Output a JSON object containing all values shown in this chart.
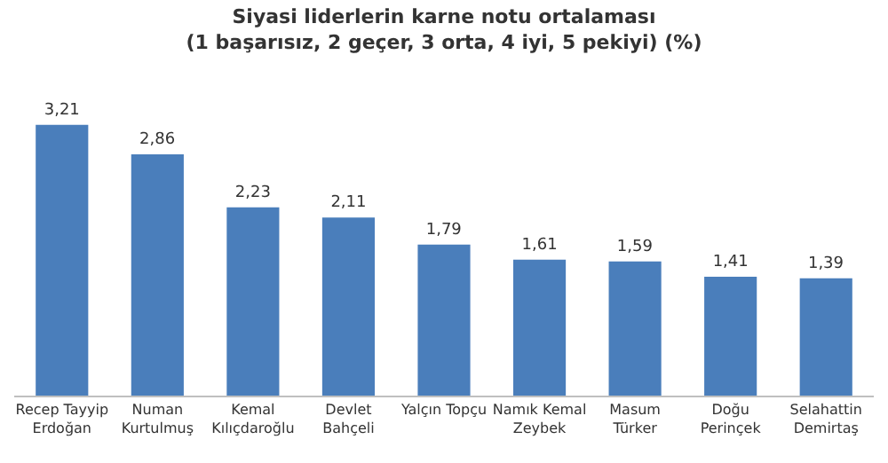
{
  "chart_data": {
    "type": "bar",
    "title": "Siyasi liderlerin karne notu ortalaması",
    "subtitle": "(1 başarısız, 2 geçer, 3 orta, 4 iyi, 5 pekiyi) (%)",
    "categories": [
      "Recep Tayyip\nErdoğan",
      "Numan\nKurtulmuş",
      "Kemal\nKılıçdaroğlu",
      "Devlet\nBahçeli",
      "Yalçın Topçu",
      "Namık Kemal\nZeybek",
      "Masum\nTürker",
      "Doğu\nPerinçek",
      "Selahattin\nDemirtaş"
    ],
    "values": [
      3.21,
      2.86,
      2.23,
      2.11,
      1.79,
      1.61,
      1.59,
      1.41,
      1.39
    ],
    "value_labels": [
      "3,21",
      "2,86",
      "2,23",
      "2,11",
      "1,79",
      "1,61",
      "1,59",
      "1,41",
      "1,39"
    ],
    "color": "#4a7ebb",
    "legend": false
  }
}
